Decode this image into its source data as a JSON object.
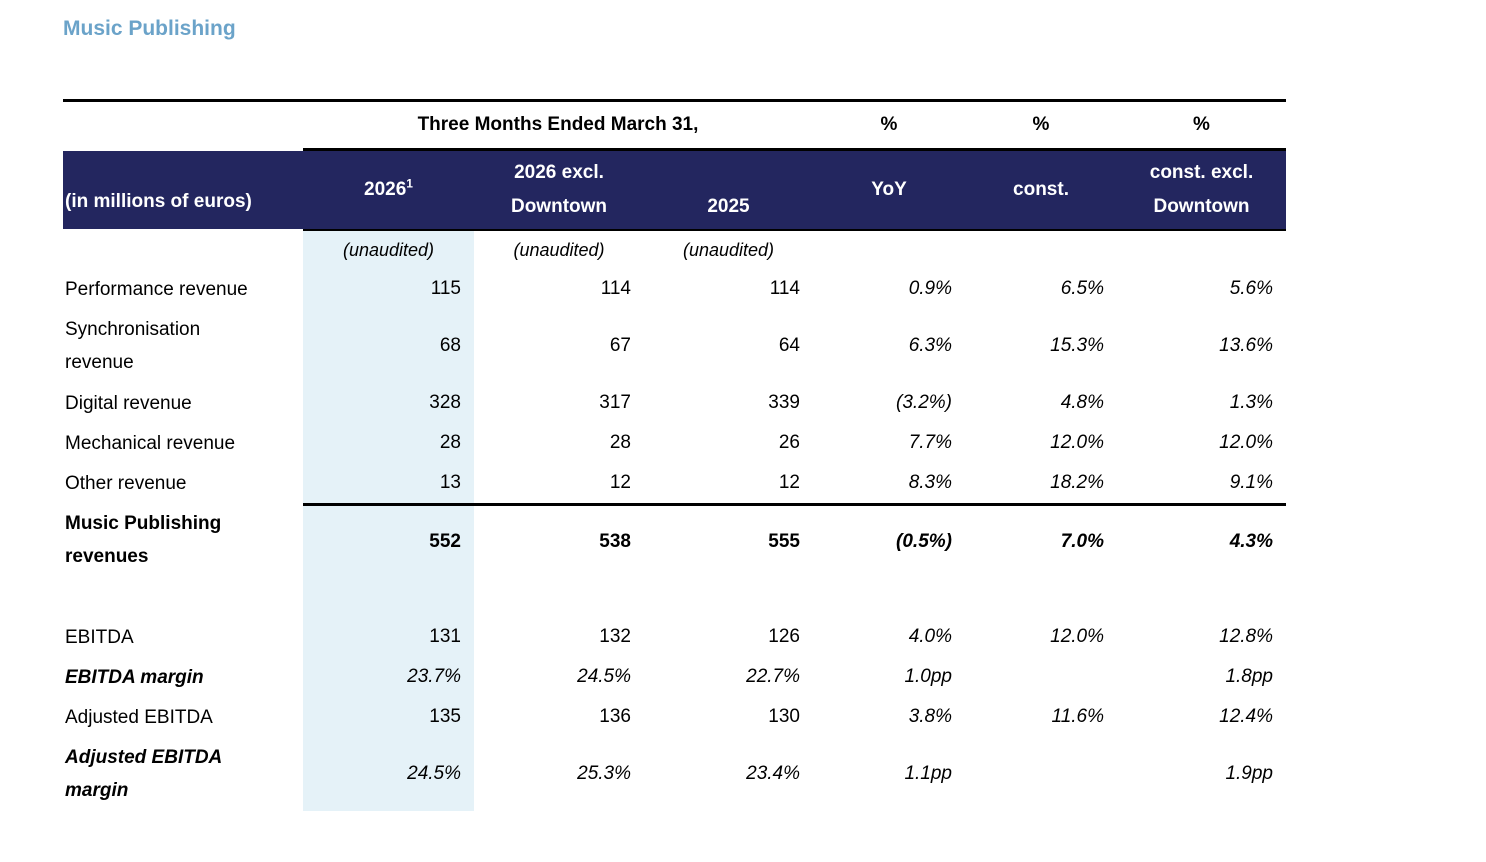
{
  "section": {
    "title": "Music Publishing"
  },
  "colors": {
    "header_navy": "#23265f",
    "highlight_column_blue": "#e5f2f8",
    "title_blue": "#6ba3c9"
  },
  "table": {
    "top_header": {
      "period_label": "Three Months Ended March 31,",
      "pct_yoy": "%",
      "pct_const": "%",
      "pct_const_excl": "%"
    },
    "columns": {
      "label_header": "(in millions of euros)",
      "y2026": "2026",
      "y2026_superscript": "1",
      "y2026excl": "2026 excl. Downtown",
      "y2025": "2025",
      "yoy": "YoY",
      "const": "const.",
      "constexcl": "const. excl. Downtown"
    },
    "unaudited": {
      "c2026": "(unaudited)",
      "c2026excl": "(unaudited)",
      "c2025": "(unaudited)"
    },
    "rows": [
      {
        "label": "Performance revenue",
        "y2026": "115",
        "y2026excl": "114",
        "y2025": "114",
        "yoy": "0.9%",
        "const": "6.5%",
        "constexcl": "5.6%"
      },
      {
        "label": "Synchronisation revenue",
        "y2026": "68",
        "y2026excl": "67",
        "y2025": "64",
        "yoy": "6.3%",
        "const": "15.3%",
        "constexcl": "13.6%"
      },
      {
        "label": "Digital revenue",
        "y2026": "328",
        "y2026excl": "317",
        "y2025": "339",
        "yoy": "(3.2%)",
        "const": "4.8%",
        "constexcl": "1.3%"
      },
      {
        "label": "Mechanical revenue",
        "y2026": "28",
        "y2026excl": "28",
        "y2025": "26",
        "yoy": "7.7%",
        "const": "12.0%",
        "constexcl": "12.0%"
      },
      {
        "label": "Other revenue",
        "y2026": "13",
        "y2026excl": "12",
        "y2025": "12",
        "yoy": "8.3%",
        "const": "18.2%",
        "constexcl": "9.1%"
      },
      {
        "label": "Music Publishing revenues",
        "y2026": "552",
        "y2026excl": "538",
        "y2025": "555",
        "yoy": "(0.5%)",
        "const": "7.0%",
        "constexcl": "4.3%"
      },
      {
        "label": "EBITDA",
        "y2026": "131",
        "y2026excl": "132",
        "y2025": "126",
        "yoy": "4.0%",
        "const": "12.0%",
        "constexcl": "12.8%"
      },
      {
        "label": "EBITDA margin",
        "y2026": "23.7%",
        "y2026excl": "24.5%",
        "y2025": "22.7%",
        "yoy": "1.0pp",
        "const": "",
        "constexcl": "1.8pp"
      },
      {
        "label": "Adjusted EBITDA",
        "y2026": "135",
        "y2026excl": "136",
        "y2025": "130",
        "yoy": "3.8%",
        "const": "11.6%",
        "constexcl": "12.4%"
      },
      {
        "label": "Adjusted EBITDA margin",
        "y2026": "24.5%",
        "y2026excl": "25.3%",
        "y2025": "23.4%",
        "yoy": "1.1pp",
        "const": "",
        "constexcl": "1.9pp"
      }
    ]
  }
}
